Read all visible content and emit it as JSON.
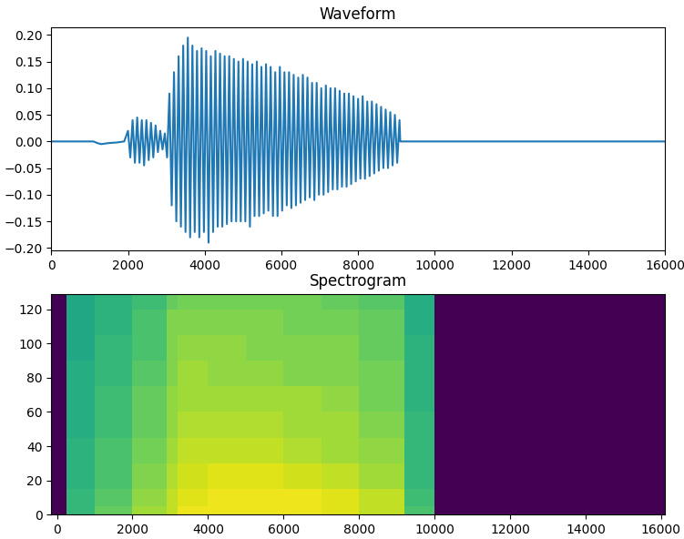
{
  "chart_data": [
    {
      "type": "line",
      "title": "Waveform",
      "color": "#1f77b4",
      "x": [
        0,
        1100,
        1200,
        1300,
        1500,
        1700,
        1900,
        2000,
        2060,
        2120,
        2180,
        2240,
        2300,
        2360,
        2420,
        2480,
        2540,
        2600,
        2660,
        2720,
        2780,
        2840,
        2900,
        2960,
        3020,
        3080,
        3140,
        3200,
        3260,
        3320,
        3380,
        3440,
        3500,
        3560,
        3620,
        3680,
        3740,
        3800,
        3860,
        3920,
        3980,
        4040,
        4100,
        4160,
        4220,
        4280,
        4340,
        4400,
        4460,
        4520,
        4580,
        4640,
        4700,
        4760,
        4820,
        4880,
        4940,
        5000,
        5060,
        5120,
        5180,
        5240,
        5300,
        5360,
        5420,
        5480,
        5540,
        5600,
        5660,
        5720,
        5780,
        5840,
        5900,
        5960,
        6020,
        6080,
        6140,
        6200,
        6260,
        6320,
        6380,
        6440,
        6500,
        6560,
        6620,
        6680,
        6740,
        6800,
        6860,
        6920,
        6980,
        7040,
        7100,
        7160,
        7220,
        7280,
        7340,
        7400,
        7460,
        7520,
        7580,
        7640,
        7700,
        7760,
        7820,
        7880,
        7940,
        8000,
        8060,
        8120,
        8180,
        8240,
        8300,
        8360,
        8420,
        8480,
        8540,
        8600,
        8660,
        8720,
        8780,
        8840,
        8900,
        8960,
        9020,
        9080,
        9100,
        16000
      ],
      "values": [
        0,
        0,
        -0.003,
        -0.005,
        -0.003,
        -0.002,
        0,
        0.02,
        -0.03,
        0.04,
        -0.04,
        0.045,
        -0.04,
        0.04,
        -0.045,
        0.04,
        -0.035,
        0.035,
        -0.03,
        0.03,
        -0.02,
        0.02,
        -0.015,
        0.015,
        -0.03,
        0.09,
        -0.12,
        0.13,
        -0.15,
        0.16,
        -0.16,
        0.18,
        -0.17,
        0.195,
        -0.18,
        0.18,
        -0.17,
        0.17,
        -0.18,
        0.175,
        -0.17,
        0.17,
        -0.19,
        0.16,
        -0.17,
        0.17,
        -0.16,
        0.165,
        -0.16,
        0.16,
        -0.155,
        0.16,
        -0.15,
        0.155,
        -0.15,
        0.15,
        -0.15,
        0.155,
        -0.15,
        0.15,
        -0.16,
        0.145,
        -0.14,
        0.15,
        -0.14,
        0.14,
        -0.135,
        0.145,
        -0.13,
        0.14,
        -0.14,
        0.13,
        -0.14,
        0.14,
        -0.13,
        0.13,
        -0.12,
        0.13,
        -0.125,
        0.125,
        -0.12,
        0.12,
        -0.115,
        0.125,
        -0.11,
        0.12,
        -0.105,
        0.11,
        -0.11,
        0.11,
        -0.1,
        0.1,
        -0.1,
        0.105,
        -0.095,
        0.1,
        -0.09,
        0.1,
        -0.09,
        0.095,
        -0.085,
        0.09,
        -0.085,
        0.09,
        -0.08,
        0.085,
        -0.075,
        0.08,
        -0.07,
        0.085,
        -0.07,
        0.075,
        -0.065,
        0.075,
        -0.06,
        0.07,
        -0.055,
        0.065,
        -0.05,
        0.06,
        -0.05,
        0.055,
        -0.045,
        0.05,
        -0.04,
        0.04,
        0,
        0
      ],
      "xlim": [
        0,
        16000
      ],
      "ylim": [
        -0.205,
        0.215
      ],
      "xticks": [
        0,
        2000,
        4000,
        6000,
        8000,
        10000,
        12000,
        14000,
        16000
      ],
      "yticks": [
        {
          "value": -0.2,
          "label": "−0.20"
        },
        {
          "value": -0.15,
          "label": "−0.15"
        },
        {
          "value": -0.1,
          "label": "−0.10"
        },
        {
          "value": -0.05,
          "label": "−0.05"
        },
        {
          "value": 0,
          "label": "0.00"
        },
        {
          "value": 0.05,
          "label": "0.05"
        },
        {
          "value": 0.1,
          "label": "0.10"
        },
        {
          "value": 0.15,
          "label": "0.15"
        },
        {
          "value": 0.2,
          "label": "0.20"
        }
      ]
    },
    {
      "type": "heatmap",
      "title": "Spectrogram",
      "x_edges": [
        -150,
        250,
        1000,
        2000,
        2900,
        3200,
        4000,
        5000,
        6000,
        7000,
        8000,
        9200,
        10000,
        16100
      ],
      "y_edges": [
        0,
        5,
        15,
        30,
        45,
        60,
        75,
        90,
        105,
        120,
        129
      ],
      "cells": [
        [
          -20,
          -6,
          -4,
          -2,
          -1,
          0.5,
          0.5,
          0.5,
          0.5,
          0,
          -1,
          -5,
          -20
        ],
        [
          -20,
          -6,
          -4.5,
          -2.5,
          -1,
          0,
          0.5,
          0.5,
          0.5,
          0,
          -1,
          -5.5,
          -20
        ],
        [
          -20,
          -6.5,
          -5,
          -3,
          -1.5,
          -0.5,
          0,
          0,
          -0.5,
          -1,
          -2,
          -6,
          -20
        ],
        [
          -20,
          -6.5,
          -5,
          -3.5,
          -2,
          -1,
          -1,
          -1,
          -1.5,
          -2,
          -2.5,
          -6,
          -20
        ],
        [
          -20,
          -7,
          -5.5,
          -4,
          -2.5,
          -1.5,
          -1.5,
          -1.5,
          -2,
          -2,
          -3,
          -6,
          -20
        ],
        [
          -20,
          -7,
          -5.5,
          -4,
          -2.5,
          -2,
          -2,
          -2,
          -2,
          -2.5,
          -3.5,
          -6.5,
          -20
        ],
        [
          -20,
          -7,
          -6,
          -4.5,
          -3,
          -2,
          -2.5,
          -2.5,
          -3,
          -3,
          -3.5,
          -6.5,
          -20
        ],
        [
          -20,
          -7.5,
          -6,
          -5,
          -3,
          -2.5,
          -2.5,
          -3,
          -3,
          -3,
          -4,
          -6.5,
          -20
        ],
        [
          -20,
          -7.5,
          -6.5,
          -5,
          -3,
          -3,
          -3,
          -3,
          -3.5,
          -3.5,
          -4,
          -7,
          -20
        ],
        [
          -20,
          -7.5,
          -6.5,
          -5.5,
          -4,
          -3.5,
          -3.5,
          -3.5,
          -3.5,
          -4,
          -4.5,
          -7,
          -20
        ]
      ],
      "color_range": [
        -20,
        1
      ],
      "xlim": [
        -150,
        16100
      ],
      "ylim": [
        0,
        129
      ],
      "xticks": [
        0,
        2000,
        4000,
        6000,
        8000,
        10000,
        12000,
        14000,
        16000
      ],
      "yticks": [
        0,
        20,
        40,
        60,
        80,
        100,
        120
      ]
    }
  ]
}
